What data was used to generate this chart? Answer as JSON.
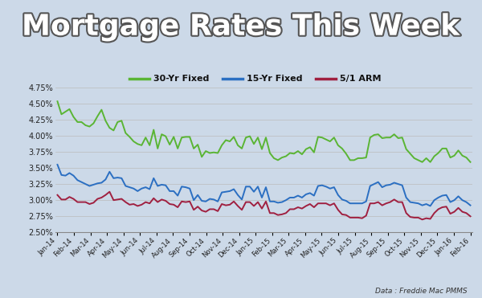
{
  "title_fontsize": 26,
  "title_color": "white",
  "title_fontweight": "bold",
  "source_text": "Data : Freddie Mac PMMS",
  "background_color": "#ccd9e8",
  "legend_labels": [
    "30-Yr Fixed",
    "15-Yr Fixed",
    "5/1 ARM"
  ],
  "legend_colors": [
    "#5ab534",
    "#2b6fc2",
    "#a02040"
  ],
  "ylim": [
    2.5,
    4.9
  ],
  "yticks": [
    2.5,
    2.75,
    3.0,
    3.25,
    3.5,
    3.75,
    4.0,
    4.25,
    4.5,
    4.75
  ],
  "xtick_labels": [
    "Jan-14",
    "Feb-14",
    "Mar-14",
    "Apr-14",
    "May-14",
    "Jun-14",
    "Jul-14",
    "Aug-14",
    "Sep-14",
    "Oct-14",
    "Nov-14",
    "Dec-14",
    "Jan-15",
    "Feb-15",
    "Mar-15",
    "Apr-15",
    "May-15",
    "Jun-15",
    "Jul-15",
    "Aug-15",
    "Sep-15",
    "Oct-15",
    "Nov-15",
    "Dec-15",
    "Jan-16",
    "Feb-16"
  ],
  "rate_30yr": [
    4.53,
    4.33,
    4.37,
    4.41,
    4.29,
    4.21,
    4.21,
    4.16,
    4.14,
    4.19,
    4.3,
    4.4,
    4.23,
    4.12,
    4.08,
    4.21,
    4.23,
    4.04,
    3.98,
    3.91,
    3.87,
    3.85,
    3.97,
    3.85,
    4.09,
    3.8,
    4.02,
    3.99,
    3.86,
    3.98,
    3.8,
    3.97,
    3.98,
    3.98,
    3.8,
    3.86,
    3.67,
    3.76,
    3.73,
    3.74,
    3.73,
    3.85,
    3.93,
    3.91,
    3.98,
    3.85,
    3.8,
    3.97,
    3.99,
    3.87,
    3.97,
    3.79,
    3.97,
    3.73,
    3.65,
    3.62,
    3.66,
    3.68,
    3.73,
    3.72,
    3.76,
    3.71,
    3.79,
    3.82,
    3.74,
    3.98,
    3.97,
    3.94,
    3.91,
    3.97,
    3.85,
    3.8,
    3.72,
    3.62,
    3.62,
    3.65,
    3.65,
    3.66,
    3.97,
    4.01,
    4.02,
    3.96,
    3.97,
    3.97,
    4.02,
    3.96,
    3.97,
    3.79,
    3.72,
    3.65,
    3.62,
    3.59,
    3.65,
    3.59,
    3.68,
    3.73,
    3.8,
    3.8,
    3.66,
    3.69,
    3.77,
    3.69,
    3.66,
    3.59
  ],
  "rate_15yr": [
    3.55,
    3.39,
    3.38,
    3.42,
    3.38,
    3.31,
    3.28,
    3.25,
    3.22,
    3.24,
    3.26,
    3.27,
    3.32,
    3.44,
    3.34,
    3.35,
    3.34,
    3.22,
    3.2,
    3.18,
    3.14,
    3.18,
    3.2,
    3.17,
    3.34,
    3.22,
    3.24,
    3.23,
    3.14,
    3.14,
    3.07,
    3.21,
    3.2,
    3.18,
    3.0,
    3.08,
    2.99,
    2.98,
    3.02,
    3.01,
    2.98,
    3.12,
    3.13,
    3.14,
    3.17,
    3.08,
    3.01,
    3.21,
    3.21,
    3.13,
    3.21,
    3.04,
    3.2,
    2.98,
    2.98,
    2.96,
    2.97,
    3.0,
    3.04,
    3.04,
    3.07,
    3.04,
    3.09,
    3.11,
    3.07,
    3.22,
    3.23,
    3.21,
    3.18,
    3.2,
    3.08,
    3.01,
    2.99,
    2.95,
    2.95,
    2.95,
    2.95,
    2.98,
    3.22,
    3.25,
    3.28,
    3.2,
    3.23,
    3.24,
    3.27,
    3.25,
    3.23,
    3.04,
    2.97,
    2.96,
    2.95,
    2.92,
    2.94,
    2.91,
    3.0,
    3.04,
    3.07,
    3.08,
    2.97,
    3.0,
    3.06,
    3.0,
    2.97,
    2.92
  ],
  "rate_arm": [
    3.08,
    3.01,
    3.01,
    3.05,
    3.02,
    2.97,
    2.97,
    2.97,
    2.94,
    2.96,
    3.02,
    3.04,
    3.08,
    3.13,
    3.0,
    3.01,
    3.02,
    2.97,
    2.93,
    2.94,
    2.91,
    2.93,
    2.97,
    2.95,
    3.03,
    2.97,
    3.01,
    2.99,
    2.94,
    2.93,
    2.89,
    2.98,
    2.97,
    2.98,
    2.85,
    2.9,
    2.84,
    2.82,
    2.86,
    2.86,
    2.83,
    2.94,
    2.92,
    2.93,
    2.98,
    2.91,
    2.85,
    2.97,
    2.97,
    2.91,
    2.97,
    2.87,
    2.98,
    2.8,
    2.8,
    2.77,
    2.78,
    2.8,
    2.86,
    2.86,
    2.89,
    2.87,
    2.91,
    2.94,
    2.89,
    2.95,
    2.95,
    2.95,
    2.92,
    2.95,
    2.85,
    2.78,
    2.77,
    2.73,
    2.73,
    2.73,
    2.72,
    2.76,
    2.95,
    2.95,
    2.97,
    2.92,
    2.95,
    2.97,
    3.01,
    2.97,
    2.97,
    2.8,
    2.74,
    2.73,
    2.73,
    2.7,
    2.72,
    2.71,
    2.8,
    2.86,
    2.89,
    2.9,
    2.79,
    2.82,
    2.88,
    2.82,
    2.8,
    2.75
  ]
}
